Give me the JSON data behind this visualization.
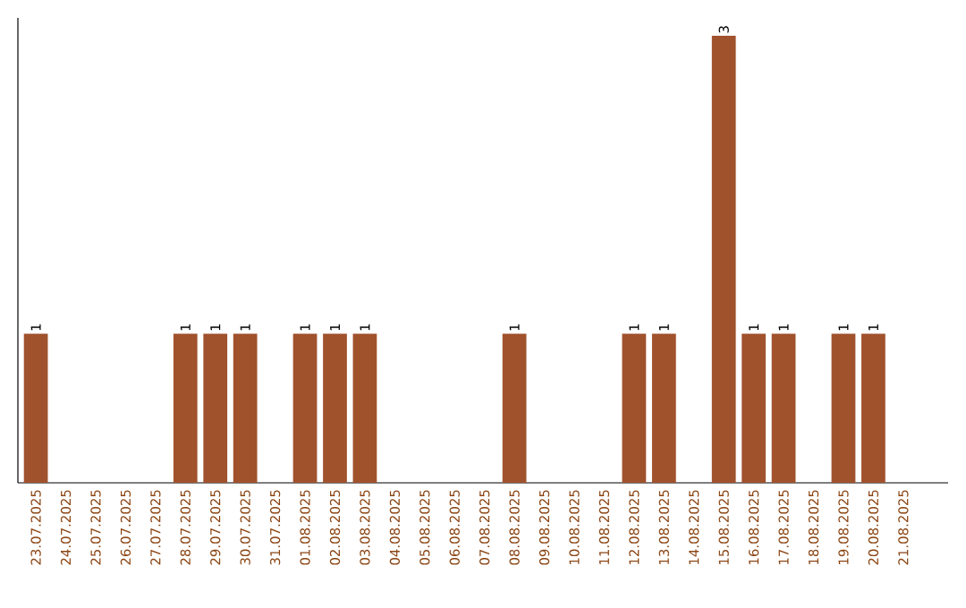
{
  "chart_data": {
    "type": "bar",
    "color": "#a0522d",
    "categories": [
      "23.07.2025",
      "24.07.2025",
      "25.07.2025",
      "26.07.2025",
      "27.07.2025",
      "28.07.2025",
      "29.07.2025",
      "30.07.2025",
      "31.07.2025",
      "01.08.2025",
      "02.08.2025",
      "03.08.2025",
      "04.08.2025",
      "05.08.2025",
      "06.08.2025",
      "07.08.2025",
      "08.08.2025",
      "09.08.2025",
      "10.08.2025",
      "11.08.2025",
      "12.08.2025",
      "13.08.2025",
      "14.08.2025",
      "15.08.2025",
      "16.08.2025",
      "17.08.2025",
      "18.08.2025",
      "19.08.2025",
      "20.08.2025",
      "21.08.2025"
    ],
    "values": [
      1,
      0,
      0,
      0,
      0,
      1,
      1,
      1,
      0,
      1,
      1,
      1,
      0,
      0,
      0,
      0,
      1,
      0,
      0,
      0,
      1,
      1,
      0,
      3,
      1,
      1,
      0,
      1,
      1,
      0
    ],
    "value_labels": [
      "1",
      null,
      null,
      null,
      null,
      "1",
      "1",
      "1",
      null,
      "1",
      "1",
      "1",
      null,
      null,
      null,
      null,
      "1",
      null,
      null,
      null,
      "1",
      "1",
      null,
      "3",
      "1",
      "1",
      null,
      "1",
      "1",
      null
    ],
    "grid": false
  }
}
